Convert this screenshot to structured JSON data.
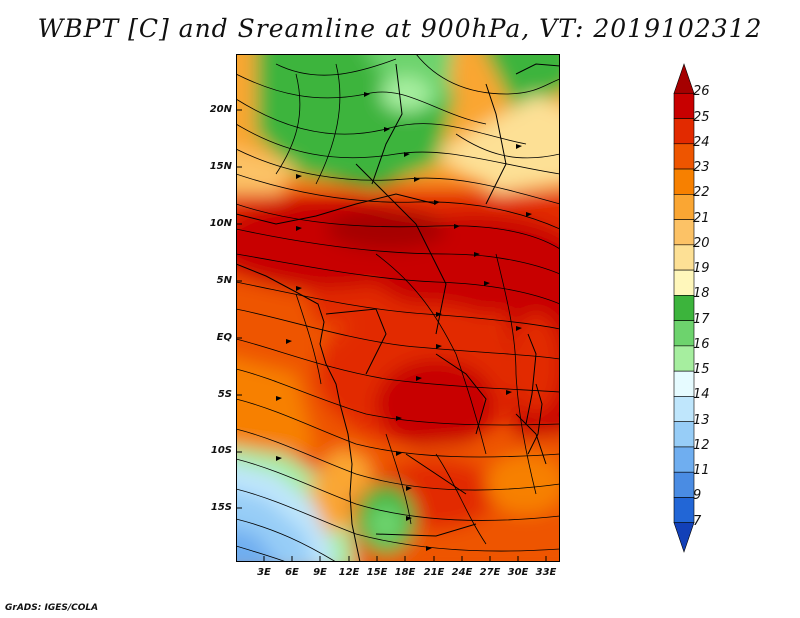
{
  "title": "WBPT [C] and Sreamline at 900hPa, VT: 2019102312",
  "credit": "GrADS: IGES/COLA",
  "lat_labels": [
    "20N",
    "15N",
    "10N",
    "5N",
    "EQ",
    "5S",
    "10S",
    "15S"
  ],
  "lon_labels": [
    "3E",
    "6E",
    "9E",
    "12E",
    "15E",
    "18E",
    "21E",
    "24E",
    "27E",
    "30E",
    "33E"
  ],
  "colorbar": {
    "levels": [
      "26",
      "25",
      "24",
      "23",
      "22",
      "21",
      "20",
      "19",
      "18",
      "17",
      "16",
      "15",
      "14",
      "13",
      "12",
      "11",
      "9",
      "7"
    ],
    "colors": [
      "#a50000",
      "#c80000",
      "#e22a00",
      "#ee5500",
      "#f78000",
      "#faa633",
      "#fcc266",
      "#fde095",
      "#fff7bb",
      "#3cb43c",
      "#6dd36d",
      "#a6ee9f",
      "#e6fbff",
      "#bfe6fc",
      "#97cdf7",
      "#6faef0",
      "#4a8ce3",
      "#2266d6",
      "#1240b8"
    ]
  }
}
